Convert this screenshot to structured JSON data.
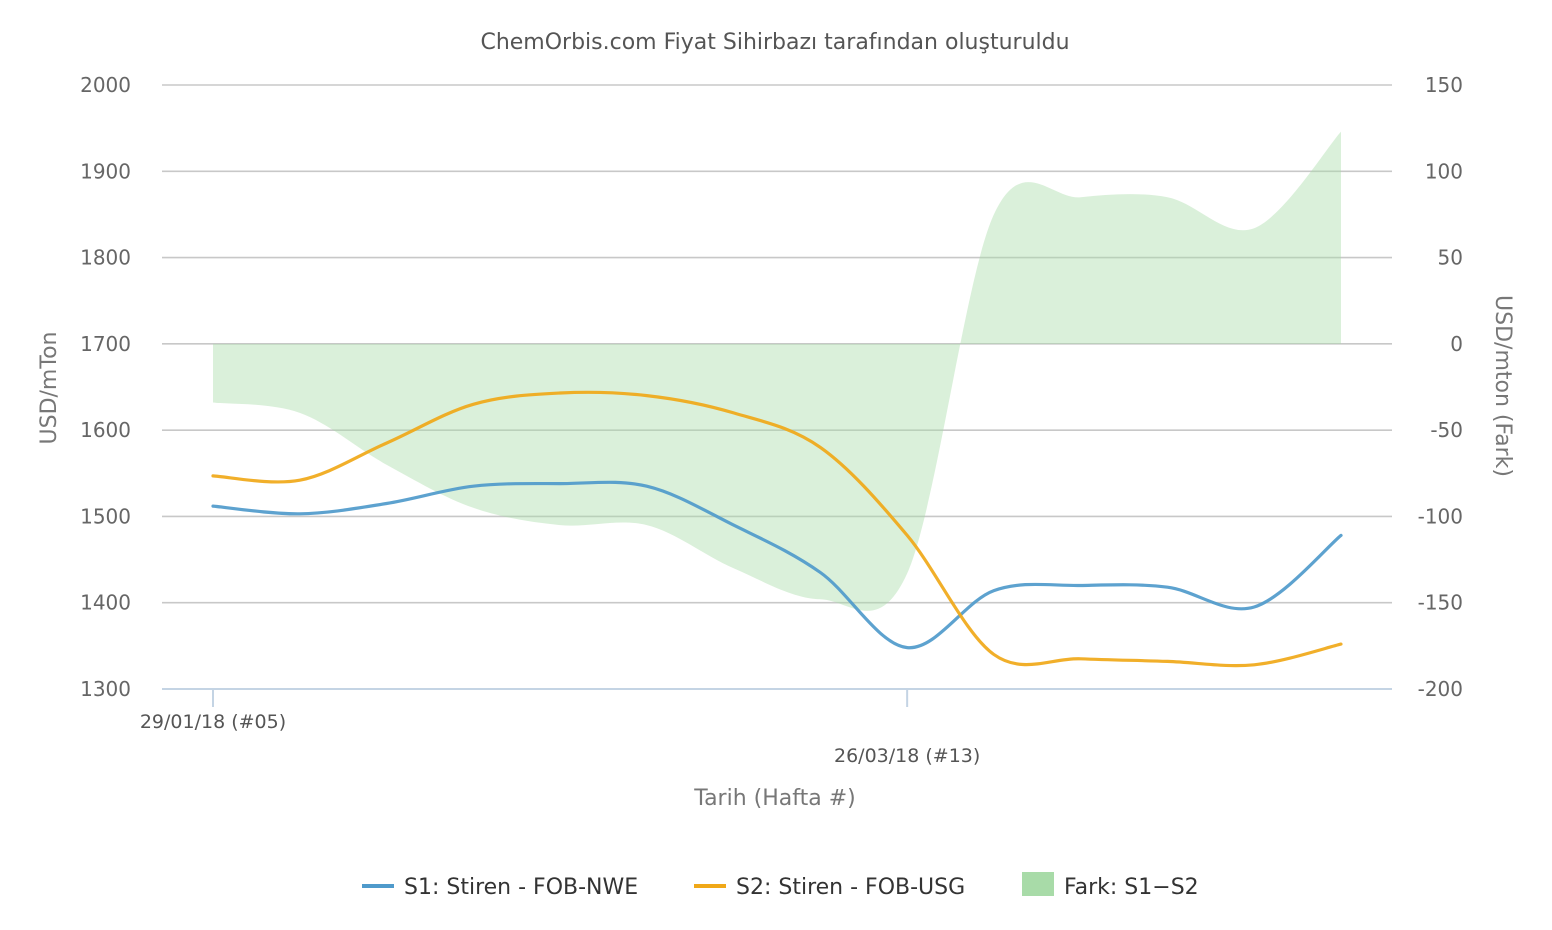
{
  "chart_data": {
    "type": "line",
    "title": "ChemOrbis.com Fiyat Sihirbazı tarafından oluşturuldu",
    "xlabel": "Tarih (Hafta #)",
    "ylabel_left": "USD/mTon",
    "ylabel_right": "USD/mton (Fark)",
    "x_tick_labels": [
      {
        "label": "29/01/18 (#05)",
        "index": 0
      },
      {
        "label": "26/03/18 (#13)",
        "index": 8
      }
    ],
    "ylim_left": [
      1300,
      2000
    ],
    "ylim_right": [
      -200,
      150
    ],
    "yticks_left": [
      1300,
      1400,
      1500,
      1600,
      1700,
      1800,
      1900,
      2000
    ],
    "yticks_right": [
      -200,
      -150,
      -100,
      -50,
      0,
      50,
      100,
      150
    ],
    "grid": true,
    "legend_placement": "bottom",
    "series": [
      {
        "name": "S1: Stiren - FOB-NWE",
        "type": "line",
        "axis": "left",
        "color": "#4f9acb",
        "values": [
          1512,
          1503,
          1515,
          1535,
          1538,
          1535,
          1490,
          1435,
          1348,
          1414,
          1420,
          1418,
          1395,
          1478
        ]
      },
      {
        "name": "S2: Stiren - FOB-USG",
        "type": "line",
        "axis": "left",
        "color": "#f0a818",
        "values": [
          1547,
          1542,
          1585,
          1630,
          1643,
          1640,
          1620,
          1580,
          1478,
          1340,
          1335,
          1332,
          1328,
          1352
        ]
      },
      {
        "name": "Fark: S1−S2",
        "type": "area",
        "axis": "right",
        "color": "#a8dba8",
        "values": [
          -34,
          -40,
          -70,
          -95,
          -105,
          -105,
          -130,
          -148,
          -133,
          75,
          85,
          85,
          67,
          123
        ]
      }
    ]
  }
}
